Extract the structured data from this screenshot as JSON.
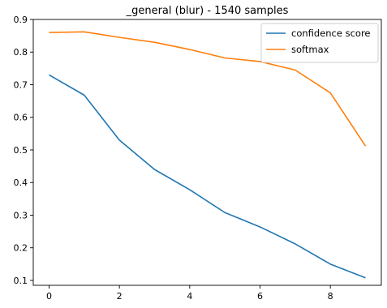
{
  "chart_data": {
    "type": "line",
    "title": "_general (blur) - 1540 samples",
    "xlabel": "",
    "ylabel": "",
    "x": [
      0,
      1,
      2,
      3,
      4,
      5,
      6,
      7,
      8,
      9
    ],
    "xlim": [
      -0.45,
      9.45
    ],
    "ylim": [
      0.085,
      0.9
    ],
    "xticks": [
      0,
      2,
      4,
      6,
      8
    ],
    "yticks": [
      0.1,
      0.2,
      0.3,
      0.4,
      0.5,
      0.6,
      0.7,
      0.8,
      0.9
    ],
    "xtick_labels": [
      "0",
      "2",
      "4",
      "6",
      "8"
    ],
    "ytick_labels": [
      "0.1",
      "0.2",
      "0.3",
      "0.4",
      "0.5",
      "0.6",
      "0.7",
      "0.8",
      "0.9"
    ],
    "grid": false,
    "legend_position": "upper right",
    "series": [
      {
        "name": "confidence score",
        "color": "#1f77b4",
        "values": [
          0.73,
          0.668,
          0.53,
          0.44,
          0.378,
          0.308,
          0.264,
          0.212,
          0.15,
          0.108
        ]
      },
      {
        "name": "softmax",
        "color": "#ff7f0e",
        "values": [
          0.86,
          0.862,
          0.845,
          0.83,
          0.808,
          0.782,
          0.771,
          0.745,
          0.675,
          0.512
        ]
      }
    ]
  }
}
